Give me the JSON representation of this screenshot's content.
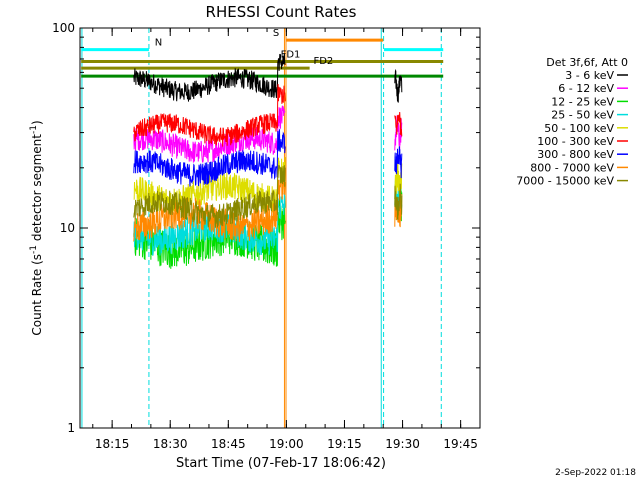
{
  "chart_data": {
    "type": "line",
    "title": "RHESSI Count Rates",
    "xlabel": "Start Time (07-Feb-17 18:06:42)",
    "ylabel_main": "Count Rate (s",
    "ylabel_sup1": "-1",
    "ylabel_mid": " detector segment",
    "ylabel_sup2": "-1",
    "ylabel_end": ")",
    "x_unit": "minutes after 18:00 on 07-Feb-17",
    "xlim": [
      6.7,
      110.0
    ],
    "ylim": [
      1,
      100
    ],
    "yscale": "log",
    "x_ticks": [
      {
        "value": 15,
        "label": "18:15"
      },
      {
        "value": 30,
        "label": "18:30"
      },
      {
        "value": 45,
        "label": "18:45"
      },
      {
        "value": 60,
        "label": "19:00"
      },
      {
        "value": 75,
        "label": "19:15"
      },
      {
        "value": 90,
        "label": "19:30"
      },
      {
        "value": 105,
        "label": "19:45"
      }
    ],
    "y_ticks": [
      {
        "value": 1,
        "label": "1"
      },
      {
        "value": 10,
        "label": "10"
      },
      {
        "value": 100,
        "label": "100"
      }
    ],
    "legend_header": "Det 3f,6f, Att 0",
    "legend_position": "right",
    "segments": [
      [
        20.6,
        59.7
      ],
      [
        88.0,
        89.8
      ]
    ],
    "series": [
      {
        "name": "3 - 6 keV",
        "color": "#000000",
        "levels": [
          52,
          51
        ],
        "spread": 0.05
      },
      {
        "name": "6 - 12 keV",
        "color": "#ff00ff",
        "levels": [
          26,
          30
        ],
        "spread": 0.06
      },
      {
        "name": "12 - 25 keV",
        "color": "#00dd00",
        "levels": [
          8.5,
          13
        ],
        "spread": 0.1
      },
      {
        "name": "25 - 50 keV",
        "color": "#00dddd",
        "levels": [
          9.5,
          14
        ],
        "spread": 0.08
      },
      {
        "name": "50 - 100 keV",
        "color": "#dddd00",
        "levels": [
          15,
          17
        ],
        "spread": 0.07
      },
      {
        "name": "100 - 300 keV",
        "color": "#ff0000",
        "levels": [
          31,
          34
        ],
        "spread": 0.05
      },
      {
        "name": "300 - 800 keV",
        "color": "#0000ff",
        "levels": [
          20,
          22
        ],
        "spread": 0.06
      },
      {
        "name": "800 - 7000 keV",
        "color": "#ff8800",
        "levels": [
          11,
          12
        ],
        "spread": 0.08
      },
      {
        "name": "7000 - 15000 keV",
        "color": "#888800",
        "levels": [
          12.5,
          13.5
        ],
        "spread": 0.06
      }
    ],
    "vertical_lines": [
      {
        "x": 7.2,
        "color": "#00dddd",
        "style": "solid"
      },
      {
        "x": 24.5,
        "color": "#00dddd",
        "style": "dashed"
      },
      {
        "x": 59.5,
        "color": "#ff8800",
        "style": "solid"
      },
      {
        "x": 59.9,
        "color": "#ff8800",
        "style": "solid"
      },
      {
        "x": 84.5,
        "color": "#00dddd",
        "style": "solid"
      },
      {
        "x": 85.1,
        "color": "#00dddd",
        "style": "dashed"
      },
      {
        "x": 100.0,
        "color": "#00dddd",
        "style": "dashed"
      }
    ],
    "flag_bars": [
      {
        "label": "N",
        "color": "#00ffff",
        "x0": 7.0,
        "x1": 24.5,
        "y": 78,
        "label_x": 26.0
      },
      {
        "label": "",
        "color": "#00ffff",
        "x0": 85.2,
        "x1": 100.5,
        "y": 78,
        "label_x": null
      },
      {
        "label": "S",
        "color": "#ff8800",
        "x0": 59.8,
        "x1": 85.0,
        "y": 87,
        "label_x": 56.5
      },
      {
        "label": "FD1",
        "color": "#888800",
        "x0": 7.0,
        "x1": 100.5,
        "y": 68,
        "label_x": 58.5
      },
      {
        "label": "FD2",
        "color": "#888800",
        "x0": 7.0,
        "x1": 66.0,
        "y": 63,
        "label_x": 67.0
      },
      {
        "label": "",
        "color": "#008800",
        "x0": 7.0,
        "x1": 100.5,
        "y": 57.5,
        "label_x": null
      }
    ],
    "grid": false
  },
  "footer_date": "2-Sep-2022 01:18"
}
